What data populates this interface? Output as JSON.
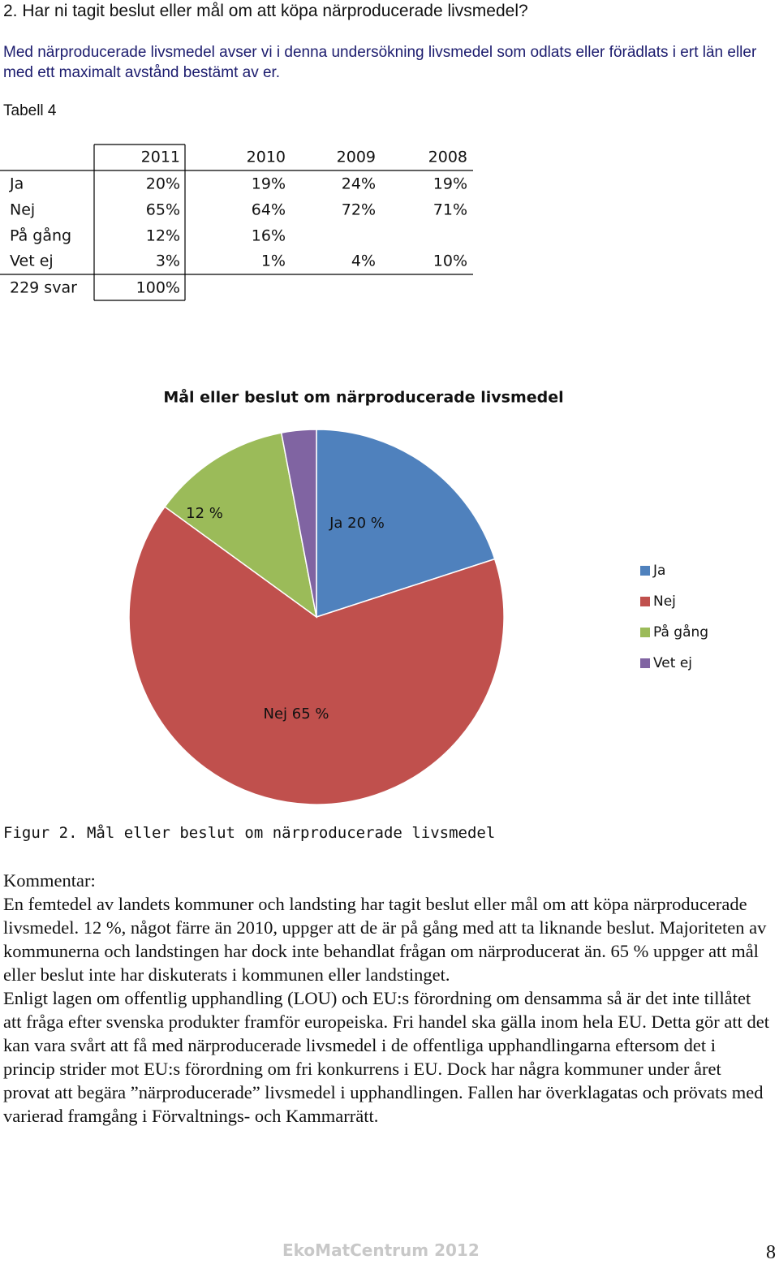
{
  "heading": "2. Har ni tagit beslut eller mål om att köpa närproducerade livsmedel?",
  "intro": "Med närproducerade livsmedel avser vi i denna undersökning livsmedel som odlats eller förädlats i ert län eller med ett maximalt avstånd bestämt av er.",
  "table": {
    "caption": "Tabell 4",
    "header": [
      "2011",
      "2010",
      "2009",
      "2008"
    ],
    "rows": [
      [
        "Ja",
        "20%",
        "19%",
        "24%",
        "19%"
      ],
      [
        "Nej",
        "65%",
        "64%",
        "72%",
        "71%"
      ],
      [
        "På gång",
        "12%",
        "16%",
        null,
        null
      ],
      [
        "Vet ej",
        "3%",
        "1%",
        "4%",
        "10%"
      ],
      [
        "229 svar",
        "100%",
        null,
        null,
        null
      ]
    ]
  },
  "chart_data": {
    "type": "pie",
    "title": "Mål eller beslut om närproducerade livsmedel",
    "categories": [
      "Ja",
      "Nej",
      "På gång",
      "Vet ej"
    ],
    "values": [
      20,
      65,
      12,
      3
    ],
    "value_labels": [
      "Ja 20 %",
      "Nej 65 %",
      "12 %",
      null
    ],
    "colors": [
      "#4f81bd",
      "#c0504d",
      "#9bbb59",
      "#8064a2"
    ],
    "legend": "right"
  },
  "figure_caption": "Figur 2. Mål eller beslut om närproducerade livsmedel",
  "comment": {
    "heading": "Kommentar:",
    "paragraphs": [
      "En femtedel av landets kommuner och landsting har tagit beslut eller mål om att köpa närproducerade livsmedel. 12 %, något färre än 2010, uppger att de är på gång med att ta liknande beslut. Majoriteten av kommunerna och landstingen har dock inte behandlat frågan om närproducerat än. 65 % uppger att mål eller beslut inte har diskuterats i kommunen eller landstinget.",
      "Enligt lagen om offentlig upphandling (LOU) och EU:s förordning om densamma så är det inte tillåtet att fråga efter svenska produkter framför europeiska. Fri handel ska gälla inom hela EU. Detta gör att det kan vara svårt att få med närproducerade livsmedel i de offentliga upphandlingarna eftersom det i princip strider mot EU:s förordning om fri konkurrens i EU. Dock har några kommuner under året provat att begära ”närproducerade” livsmedel i upphandlingen. Fallen har överklagatas och prövats med varierad framgång i Förvaltnings- och Kammarrätt."
    ]
  },
  "footer": {
    "brand": "EkoMatCentrum 2012",
    "page": "8"
  }
}
